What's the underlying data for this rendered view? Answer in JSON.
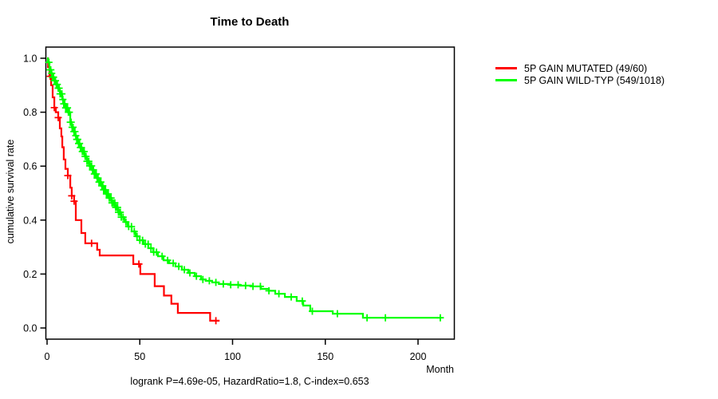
{
  "title": "Time to Death",
  "y_axis": {
    "label": "cumulative survival rate",
    "tick_labels": [
      "0.0",
      "0.2",
      "0.4",
      "0.6",
      "0.8",
      "1.0"
    ],
    "tick_values": [
      0.0,
      0.2,
      0.4,
      0.6,
      0.8,
      1.0
    ]
  },
  "x_axis": {
    "label": "Month",
    "tick_labels": [
      "0",
      "50",
      "100",
      "150",
      "200"
    ],
    "tick_values": [
      0,
      50,
      100,
      150,
      200
    ]
  },
  "annotation": "logrank P=4.69e-05, HazardRatio=1.8, C-index=0.653",
  "legend": {
    "items": [
      {
        "label": "5P GAIN MUTATED (49/60)",
        "color": "#ff0000"
      },
      {
        "label": "5P GAIN WILD-TYP (549/1018)",
        "color": "#00ff00"
      }
    ]
  },
  "chart_data": {
    "type": "line",
    "subtype": "kaplan-meier-step",
    "title": "Time to Death",
    "xlabel": "Month",
    "ylabel": "cumulative survival rate",
    "xlim": [
      0,
      220
    ],
    "ylim": [
      0,
      1
    ],
    "grid": false,
    "legend_position": "right-outside",
    "footnote": "logrank P=4.69e-05, HazardRatio=1.8, C-index=0.653",
    "series": [
      {
        "name": "5P GAIN MUTATED (49/60)",
        "color": "#ff0000",
        "end_month": 93,
        "steps": [
          [
            0,
            1.0
          ],
          [
            0.5,
            0.967
          ],
          [
            1.3,
            0.933
          ],
          [
            2.2,
            0.9
          ],
          [
            3,
            0.855
          ],
          [
            3.9,
            0.817
          ],
          [
            4.7,
            0.8
          ],
          [
            6,
            0.78
          ],
          [
            6.9,
            0.74
          ],
          [
            7.7,
            0.71
          ],
          [
            8.2,
            0.67
          ],
          [
            9,
            0.625
          ],
          [
            9.9,
            0.59
          ],
          [
            11.2,
            0.565
          ],
          [
            12.5,
            0.52
          ],
          [
            13.3,
            0.49
          ],
          [
            14.6,
            0.47
          ],
          [
            15.5,
            0.4
          ],
          [
            18.5,
            0.352
          ],
          [
            20.6,
            0.314
          ],
          [
            27,
            0.29
          ],
          [
            28.4,
            0.269
          ],
          [
            46.5,
            0.237
          ],
          [
            50.3,
            0.2
          ],
          [
            58,
            0.155
          ],
          [
            63,
            0.12
          ],
          [
            67,
            0.09
          ],
          [
            70.5,
            0.056
          ],
          [
            87.9,
            0.027
          ]
        ],
        "censor_months": [
          1.7,
          3.9,
          6,
          11.2,
          13.3,
          14.6,
          24,
          49.5,
          91
        ]
      },
      {
        "name": "5P GAIN WILD-TYP (549/1018)",
        "color": "#00ff00",
        "end_month": 212.4,
        "steps": [
          [
            0,
            1.0
          ],
          [
            0.4,
            0.985
          ],
          [
            1.3,
            0.957
          ],
          [
            2.2,
            0.944
          ],
          [
            3,
            0.93
          ],
          [
            3.9,
            0.917
          ],
          [
            4.7,
            0.903
          ],
          [
            5.6,
            0.889
          ],
          [
            6.9,
            0.868
          ],
          [
            8.2,
            0.847
          ],
          [
            9,
            0.831
          ],
          [
            10,
            0.816
          ],
          [
            11.2,
            0.8
          ],
          [
            12.5,
            0.763
          ],
          [
            13.3,
            0.744
          ],
          [
            14.2,
            0.728
          ],
          [
            15.1,
            0.713
          ],
          [
            15.9,
            0.699
          ],
          [
            16.8,
            0.684
          ],
          [
            17.6,
            0.669
          ],
          [
            18.9,
            0.654
          ],
          [
            20.2,
            0.636
          ],
          [
            21.5,
            0.618
          ],
          [
            22.8,
            0.601
          ],
          [
            24.1,
            0.586
          ],
          [
            25.4,
            0.571
          ],
          [
            26.7,
            0.556
          ],
          [
            28,
            0.541
          ],
          [
            29.2,
            0.527
          ],
          [
            30.5,
            0.512
          ],
          [
            31.8,
            0.497
          ],
          [
            33.1,
            0.482
          ],
          [
            34.8,
            0.464
          ],
          [
            36.6,
            0.447
          ],
          [
            38.3,
            0.429
          ],
          [
            40,
            0.411
          ],
          [
            41.7,
            0.393
          ],
          [
            43.4,
            0.376
          ],
          [
            45.6,
            0.358
          ],
          [
            47.7,
            0.34
          ],
          [
            49.9,
            0.325
          ],
          [
            52,
            0.311
          ],
          [
            54.6,
            0.296
          ],
          [
            57.2,
            0.281
          ],
          [
            59.8,
            0.266
          ],
          [
            62.8,
            0.251
          ],
          [
            65.8,
            0.24
          ],
          [
            69.2,
            0.228
          ],
          [
            72.7,
            0.216
          ],
          [
            76.1,
            0.204
          ],
          [
            79.6,
            0.192
          ],
          [
            83,
            0.18
          ],
          [
            85.5,
            0.175
          ],
          [
            89,
            0.169
          ],
          [
            92.6,
            0.163
          ],
          [
            98.5,
            0.16
          ],
          [
            104,
            0.157
          ],
          [
            110,
            0.154
          ],
          [
            115.3,
            0.145
          ],
          [
            119.6,
            0.138
          ],
          [
            123,
            0.127
          ],
          [
            128.2,
            0.115
          ],
          [
            134.6,
            0.1
          ],
          [
            138.1,
            0.083
          ],
          [
            141.9,
            0.062
          ],
          [
            154,
            0.053
          ],
          [
            170.3,
            0.038
          ]
        ],
        "censor_months": [
          1,
          1.5,
          2,
          2.5,
          3,
          3.5,
          4,
          4.5,
          5,
          5.5,
          6,
          6.5,
          7,
          7.5,
          8,
          8.5,
          9,
          9.5,
          10,
          10.5,
          11,
          11.5,
          12,
          12.5,
          13,
          13.5,
          14,
          14.5,
          15,
          15.5,
          16,
          16.5,
          17,
          17.5,
          18,
          18.5,
          19,
          19.5,
          20,
          20.5,
          21,
          21.5,
          22,
          22.5,
          23,
          23.5,
          24,
          24.5,
          25,
          25.5,
          26,
          26.5,
          27,
          27.5,
          28,
          28.5,
          29,
          29.5,
          30,
          30.5,
          31,
          31.5,
          32,
          32.5,
          33,
          33.5,
          34,
          34.5,
          35,
          35.5,
          36,
          36.5,
          37,
          37.5,
          38,
          38.5,
          39,
          39.5,
          40,
          41,
          42.5,
          44,
          45.5,
          47,
          48.5,
          50,
          51.5,
          53,
          54.5,
          56,
          57.5,
          59,
          62,
          65,
          68,
          71,
          74,
          77,
          80.5,
          84,
          87.5,
          91,
          95,
          99,
          103,
          107,
          111,
          115,
          119.6,
          125,
          131.6,
          137.6,
          143,
          156.5,
          172.5,
          182.4,
          212
        ]
      }
    ]
  }
}
